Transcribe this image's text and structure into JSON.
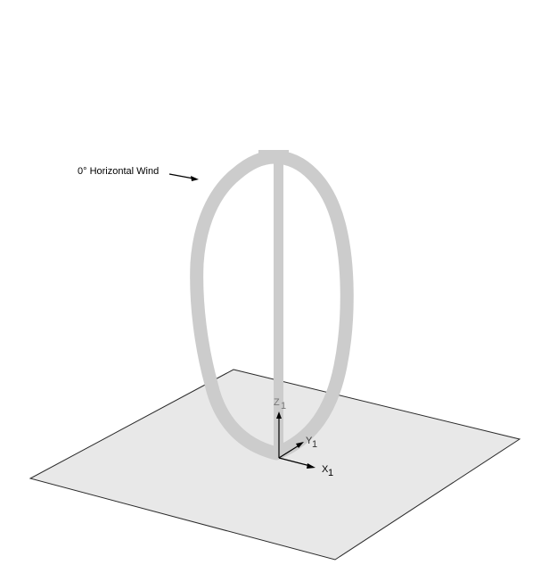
{
  "wind": {
    "label": "0° Horizontal Wind"
  },
  "axes": {
    "x": "X",
    "y": "Y",
    "z": "Z",
    "subscript": "1"
  },
  "colors": {
    "ground": "#e8e8e8",
    "ground_edge": "#2a2a2a",
    "rotor": "#cccccc",
    "axis": "#000000",
    "axis_label_z": "#777777",
    "axis_label_y": "#333333",
    "axis_label_x": "#000000"
  }
}
